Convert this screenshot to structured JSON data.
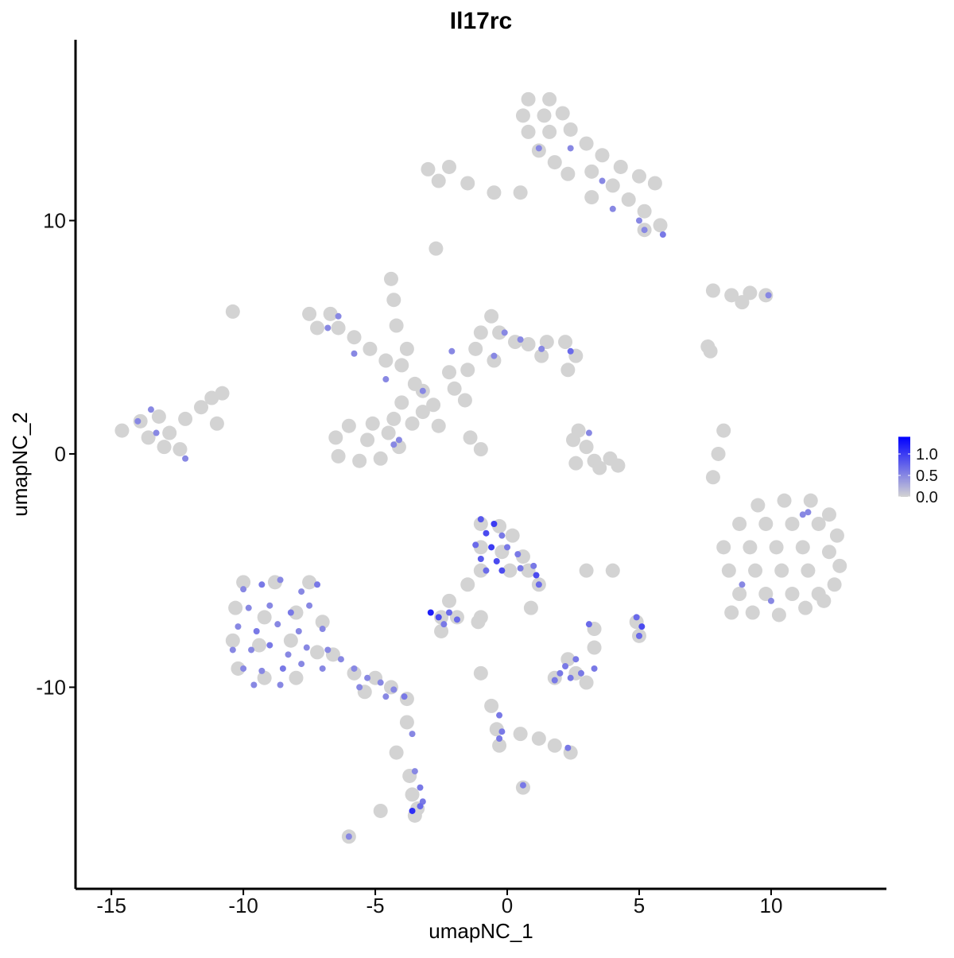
{
  "chart_data": {
    "type": "scatter",
    "title": "Il17rc",
    "xlabel": "umapNC_1",
    "ylabel": "umapNC_2",
    "xlim": [
      -16.36,
      14.37
    ],
    "ylim": [
      -18.64,
      17.75
    ],
    "xticks": [
      -15,
      -10,
      -5,
      0,
      5,
      10
    ],
    "yticks": [
      -10,
      0,
      10
    ],
    "color_low": "#d3d3d3",
    "color_high": "#0000ff",
    "clim": [
      0,
      1.4
    ],
    "cticks": [
      {
        "value": 0,
        "label": "0.0"
      },
      {
        "value": 0.5,
        "label": "0.5"
      },
      {
        "value": 1,
        "label": "1.0"
      }
    ],
    "x": [
      0.8,
      1.6,
      0.6,
      1.4,
      2.1,
      0.8,
      1.6,
      2.4,
      3.0,
      3.6,
      4.3,
      5.0,
      5.6,
      1.2,
      1.8,
      2.3,
      3.2,
      4.0,
      4.6,
      5.2,
      5.8,
      5.2,
      -3.0,
      -2.2,
      -2.6,
      -1.5,
      -0.5,
      0.5,
      3.2,
      -2.7,
      7.8,
      8.5,
      9.2,
      9.8,
      8.9,
      7.6,
      7.7,
      -7.5,
      -6.7,
      -7.2,
      -6.4,
      -5.8,
      -5.2,
      -4.6,
      -4.0,
      -3.5,
      -4.4,
      -4.3,
      -4.2,
      -3.8,
      -3.2,
      -2.8,
      -2.2,
      -1.5,
      -2.0,
      -1.2,
      -1.0,
      -0.6,
      -0.3,
      0.3,
      0.8,
      1.5,
      2.2,
      2.6,
      2.3,
      1.3,
      -0.5,
      -1.6,
      -2.6,
      -1.4,
      -1.0,
      -3.2,
      -3.6,
      -4.3,
      -5.1,
      -6.0,
      -6.5,
      -6.4,
      -5.6,
      -4.8,
      -4.1,
      -5.3,
      -4.5,
      -4.0,
      -10.4,
      -14.6,
      -13.9,
      -13.2,
      -13.6,
      -12.8,
      -12.2,
      -11.6,
      -11.2,
      -12.4,
      -13.0,
      -11.0,
      -10.8,
      2.5,
      2.7,
      3.0,
      3.3,
      2.6,
      3.9,
      4.2,
      3.5,
      8.2,
      8.0,
      7.8,
      9.5,
      10.5,
      11.5,
      12.2,
      8.8,
      9.8,
      10.8,
      11.8,
      12.5,
      8.2,
      9.2,
      10.2,
      11.2,
      12.2,
      12.6,
      8.4,
      9.4,
      10.4,
      11.4,
      12.4,
      8.8,
      9.8,
      10.8,
      11.8,
      8.5,
      9.3,
      10.3,
      11.3,
      12.0,
      -10.0,
      -8.8,
      -7.5,
      -10.3,
      -9.2,
      -8.0,
      -7.0,
      -10.4,
      -9.4,
      -8.2,
      -7.2,
      -6.6,
      -10.2,
      -9.2,
      -8.0,
      -5.8,
      -5.0,
      -4.4,
      -3.8,
      -5.4,
      -3.8,
      -3.7,
      -3.6,
      -3.4,
      -4.8,
      -6.0,
      -4.2,
      -1.0,
      -0.3,
      0.2,
      -1.0,
      -0.2,
      0.6,
      -1.0,
      0.1,
      0.8,
      1.2,
      -1.5,
      -2.2,
      -2.5,
      -1.9,
      -2.5,
      -1.0,
      0.9,
      2.3,
      1.8,
      2.6,
      3.0,
      3.3,
      4.9,
      5.0,
      -1.0,
      -0.6,
      -0.4,
      -0.3,
      0.5,
      1.2,
      1.8,
      2.4,
      0.6,
      -1.1,
      3.0,
      4.0,
      3.3,
      -3.5,
      1.2,
      2.4,
      3.6,
      4.0,
      5.0,
      5.2,
      5.9,
      9.9,
      -6.8,
      -6.4,
      -5.8,
      -2.1,
      -0.1,
      0.5,
      1.3,
      2.4,
      -0.5,
      -4.6,
      -3.2,
      -4.1,
      -4.3,
      -14.0,
      -13.5,
      -13.3,
      -12.2,
      3.1,
      11.2,
      11.4,
      8.9,
      10.0,
      -10.0,
      -9.3,
      -8.6,
      -7.8,
      -7.2,
      -9.8,
      -9.0,
      -8.2,
      -7.5,
      -10.2,
      -9.5,
      -8.7,
      -7.9,
      -7.0,
      -10.4,
      -9.7,
      -9.0,
      -8.3,
      -7.6,
      -6.8,
      -10.0,
      -9.3,
      -8.5,
      -7.8,
      -7.0,
      -6.3,
      -9.6,
      -8.6,
      -5.8,
      -5.3,
      -4.8,
      -4.3,
      -3.9,
      -4.6,
      -5.6,
      -3.6,
      -3.5,
      -3.3,
      -3.2,
      -3.6,
      -3.3,
      -6.0,
      -1.0,
      -0.5,
      -0.8,
      -0.2,
      -1.2,
      -0.6,
      0.0,
      -1.0,
      -0.4,
      0.4,
      -0.8,
      -0.2,
      0.5,
      1.0,
      1.1,
      1.2,
      -2.9,
      -2.6,
      -2.2,
      -1.9,
      -2.4,
      2.0,
      2.4,
      2.8,
      2.2,
      1.8,
      2.6,
      3.3,
      4.9,
      5.1,
      5.0,
      3.1,
      -0.3,
      -0.2,
      -0.3,
      0.6,
      2.3
    ],
    "y": [
      15.2,
      15.2,
      14.5,
      14.5,
      14.6,
      13.8,
      13.8,
      13.9,
      13.3,
      12.8,
      12.3,
      11.9,
      11.6,
      13.0,
      12.5,
      12.0,
      12.1,
      11.5,
      10.9,
      10.4,
      9.8,
      9.6,
      12.2,
      12.3,
      11.7,
      11.6,
      11.2,
      11.2,
      11.0,
      8.8,
      7.0,
      6.8,
      6.9,
      6.8,
      6.5,
      4.6,
      4.4,
      6.0,
      6.0,
      5.4,
      5.4,
      5.0,
      4.5,
      4.0,
      3.8,
      3.0,
      7.5,
      6.6,
      5.5,
      4.5,
      2.7,
      2.1,
      3.5,
      3.6,
      2.8,
      4.5,
      5.2,
      5.9,
      5.2,
      4.8,
      4.7,
      4.8,
      4.8,
      4.2,
      3.6,
      4.2,
      4.0,
      2.3,
      1.2,
      0.7,
      0.2,
      1.8,
      1.3,
      1.5,
      1.3,
      1.2,
      0.7,
      -0.1,
      -0.3,
      -0.2,
      0.3,
      0.6,
      0.9,
      2.2,
      6.1,
      1.0,
      1.4,
      1.6,
      0.7,
      0.9,
      1.5,
      2.0,
      2.4,
      0.2,
      0.3,
      1.3,
      2.6,
      0.6,
      1.0,
      0.3,
      -0.3,
      -0.4,
      -0.2,
      -0.5,
      -0.6,
      1.0,
      0.0,
      -1.0,
      -2.2,
      -2.0,
      -2.0,
      -2.6,
      -3.0,
      -3.0,
      -3.0,
      -3.0,
      -3.5,
      -4.0,
      -4.0,
      -4.0,
      -4.0,
      -4.2,
      -4.8,
      -5.0,
      -5.0,
      -5.0,
      -5.0,
      -5.6,
      -6.0,
      -6.0,
      -6.0,
      -6.0,
      -6.8,
      -6.8,
      -6.9,
      -6.6,
      -6.3,
      -5.5,
      -5.5,
      -5.5,
      -6.6,
      -7.0,
      -6.8,
      -7.2,
      -8.0,
      -8.2,
      -8.0,
      -8.5,
      -8.6,
      -9.2,
      -9.6,
      -9.6,
      -9.4,
      -9.6,
      -10.0,
      -10.5,
      -10.2,
      -11.5,
      -13.8,
      -14.6,
      -15.2,
      -15.3,
      -16.4,
      -12.8,
      -3.0,
      -3.1,
      -3.5,
      -4.0,
      -4.2,
      -4.4,
      -5.0,
      -5.0,
      -5.0,
      -5.6,
      -5.6,
      -6.3,
      -7.0,
      -7.0,
      -7.6,
      -7.0,
      -6.6,
      -8.8,
      -9.6,
      -9.4,
      -9.8,
      -8.3,
      -7.2,
      -7.8,
      -9.4,
      -10.8,
      -11.8,
      -12.5,
      -12.0,
      -12.2,
      -12.5,
      -12.8,
      -14.3,
      -7.2,
      -5.0,
      -5.0,
      -7.5,
      -15.5,
      13.1,
      13.1,
      11.7,
      10.5,
      10.0,
      9.6,
      9.4,
      6.8,
      5.4,
      5.9,
      4.3,
      4.4,
      5.2,
      4.9,
      4.5,
      4.4,
      4.2,
      3.2,
      2.7,
      0.6,
      0.4,
      1.4,
      1.9,
      0.9,
      -0.2,
      0.9,
      -2.6,
      -2.5,
      -5.6,
      -6.3,
      -5.8,
      -5.6,
      -5.4,
      -5.9,
      -5.6,
      -6.6,
      -6.5,
      -6.8,
      -6.5,
      -7.4,
      -7.6,
      -7.3,
      -7.6,
      -7.5,
      -8.4,
      -8.4,
      -8.2,
      -8.6,
      -8.3,
      -8.4,
      -9.2,
      -9.3,
      -9.2,
      -9.0,
      -9.2,
      -8.8,
      -9.9,
      -9.9,
      -9.2,
      -9.6,
      -9.8,
      -10.1,
      -10.4,
      -10.4,
      -10.0,
      -12.0,
      -13.6,
      -14.3,
      -14.9,
      -15.3,
      -15.1,
      -16.4,
      -2.8,
      -3.0,
      -3.4,
      -3.5,
      -3.9,
      -4.0,
      -4.0,
      -4.5,
      -4.6,
      -4.3,
      -5.0,
      -5.0,
      -4.9,
      -4.8,
      -5.2,
      -5.6,
      -6.8,
      -7.0,
      -6.8,
      -7.1,
      -7.3,
      -9.4,
      -9.6,
      -9.4,
      -9.1,
      -9.7,
      -8.8,
      -9.2,
      -7.0,
      -7.4,
      -7.8,
      -7.3,
      -11.2,
      -11.9,
      -12.2,
      -14.2,
      -12.6
    ],
    "values": [
      0,
      0,
      0,
      0,
      0,
      0,
      0,
      0,
      0,
      0,
      0,
      0,
      0,
      0,
      0,
      0,
      0,
      0,
      0,
      0,
      0,
      0,
      0,
      0,
      0,
      0,
      0,
      0,
      0,
      0,
      0,
      0,
      0,
      0,
      0,
      0,
      0,
      0,
      0,
      0,
      0,
      0,
      0,
      0,
      0,
      0,
      0,
      0,
      0,
      0,
      0,
      0,
      0,
      0,
      0,
      0,
      0,
      0,
      0,
      0,
      0,
      0,
      0,
      0,
      0,
      0,
      0,
      0,
      0,
      0,
      0,
      0,
      0,
      0,
      0,
      0,
      0,
      0,
      0,
      0,
      0,
      0,
      0,
      0,
      0,
      0,
      0,
      0,
      0,
      0,
      0,
      0,
      0,
      0,
      0,
      0,
      0,
      0,
      0,
      0,
      0,
      0,
      0,
      0,
      0,
      0,
      0,
      0,
      0,
      0,
      0,
      0,
      0,
      0,
      0,
      0,
      0,
      0,
      0,
      0,
      0,
      0,
      0,
      0,
      0,
      0,
      0,
      0,
      0,
      0,
      0,
      0,
      0,
      0,
      0,
      0,
      0,
      0,
      0,
      0,
      0,
      0,
      0,
      0,
      0,
      0,
      0,
      0,
      0,
      0,
      0,
      0,
      0,
      0,
      0,
      0,
      0,
      0,
      0,
      0,
      0,
      0,
      0,
      0,
      0,
      0,
      0,
      0,
      0,
      0,
      0,
      0,
      0,
      0,
      0,
      0,
      0,
      0,
      0,
      0,
      0,
      0,
      0,
      0,
      0,
      0,
      0,
      0,
      0,
      0,
      0,
      0,
      0,
      0,
      0,
      0,
      0,
      0,
      0,
      0,
      0,
      0,
      0.5,
      0.5,
      0.5,
      0.5,
      0.5,
      0.5,
      0.6,
      0.5,
      0.5,
      0.5,
      0.5,
      0.5,
      0.5,
      0.5,
      0.5,
      0.7,
      0.5,
      0.5,
      0.5,
      0.5,
      0.5,
      0.5,
      0.5,
      0.5,
      0.5,
      0.5,
      0.5,
      0.5,
      0.5,
      0.5,
      0.5,
      0.6,
      0.5,
      0.5,
      0.6,
      0.5,
      0.5,
      0.6,
      0.5,
      0.5,
      0.6,
      0.5,
      0.5,
      0.5,
      0.5,
      0.5,
      0.6,
      0.5,
      0.5,
      0.5,
      0.5,
      0.5,
      0.6,
      0.5,
      0.5,
      0.5,
      0.5,
      0.5,
      0.5,
      0.5,
      0.5,
      0.5,
      0.6,
      0.5,
      0.5,
      0.5,
      0.5,
      0.6,
      0.6,
      1.1,
      0.7,
      0.5,
      0.8,
      1.0,
      0.9,
      0.6,
      0.7,
      1.0,
      0.6,
      0.8,
      0.9,
      0.6,
      0.7,
      0.9,
      0.6,
      0.6,
      0.9,
      0.7,
      1.2,
      0.9,
      0.7,
      0.7,
      0.6,
      0.6,
      0.6,
      0.6,
      0.6,
      0.6,
      0.6,
      0.6,
      0.7,
      0.9,
      0.7,
      0.7,
      0.6,
      0.6,
      0.6,
      0.6,
      0.6
    ]
  }
}
